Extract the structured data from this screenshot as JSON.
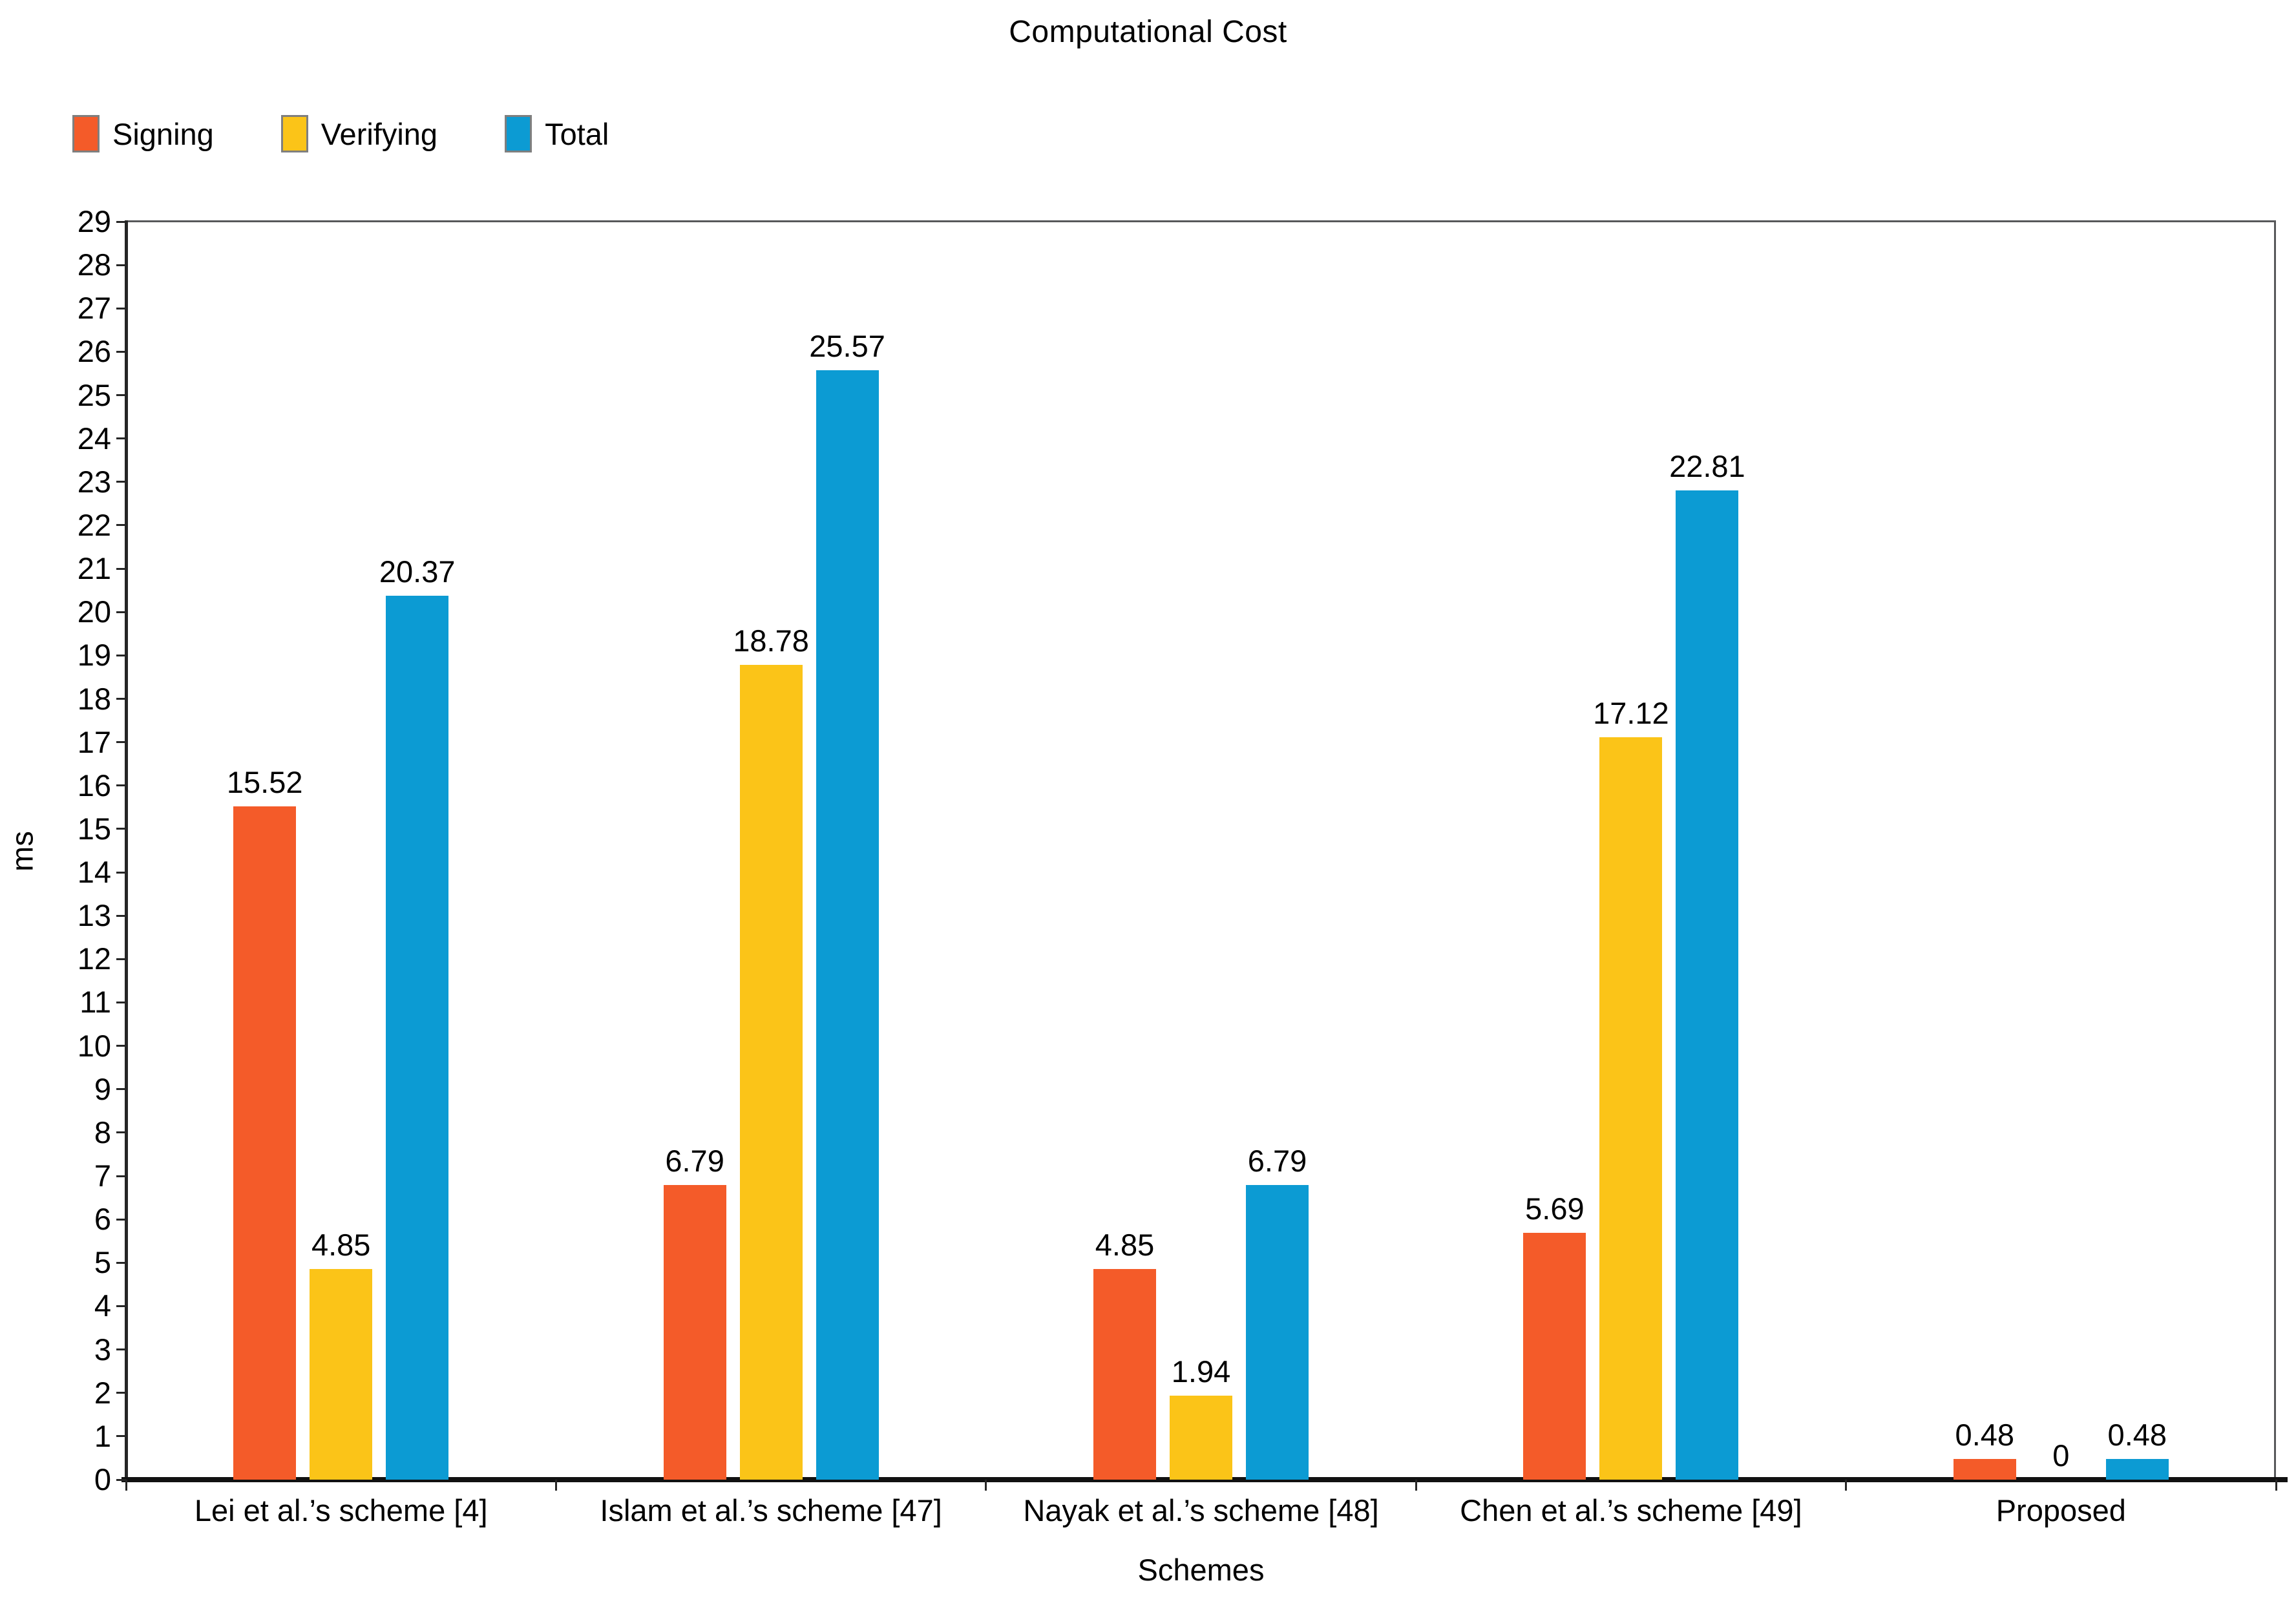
{
  "title": "Computational Cost",
  "legend": [
    {
      "label": "Signing",
      "color": "#f45b29"
    },
    {
      "label": "Verifying",
      "color": "#fbc418"
    },
    {
      "label": "Total",
      "color": "#0c9bd3"
    }
  ],
  "chart_data": {
    "type": "bar",
    "title": "Computational Cost",
    "xlabel": "Schemes",
    "ylabel": "ms",
    "ylim": [
      0,
      29
    ],
    "ytick_step": 1,
    "grid": false,
    "legend_position": "top-left",
    "categories": [
      "Lei et al.’s scheme [4]",
      "Islam et al.’s scheme [47]",
      "Nayak et al.’s scheme [48]",
      "Chen et al.’s scheme [49]",
      "Proposed"
    ],
    "series": [
      {
        "name": "Signing",
        "color": "#f45b29",
        "values": [
          15.52,
          6.79,
          4.85,
          5.69,
          0.48
        ]
      },
      {
        "name": "Verifying",
        "color": "#fbc418",
        "values": [
          4.85,
          18.78,
          1.94,
          17.12,
          0
        ]
      },
      {
        "name": "Total",
        "color": "#0c9bd3",
        "values": [
          20.37,
          25.57,
          6.79,
          22.81,
          0.48
        ]
      }
    ]
  }
}
